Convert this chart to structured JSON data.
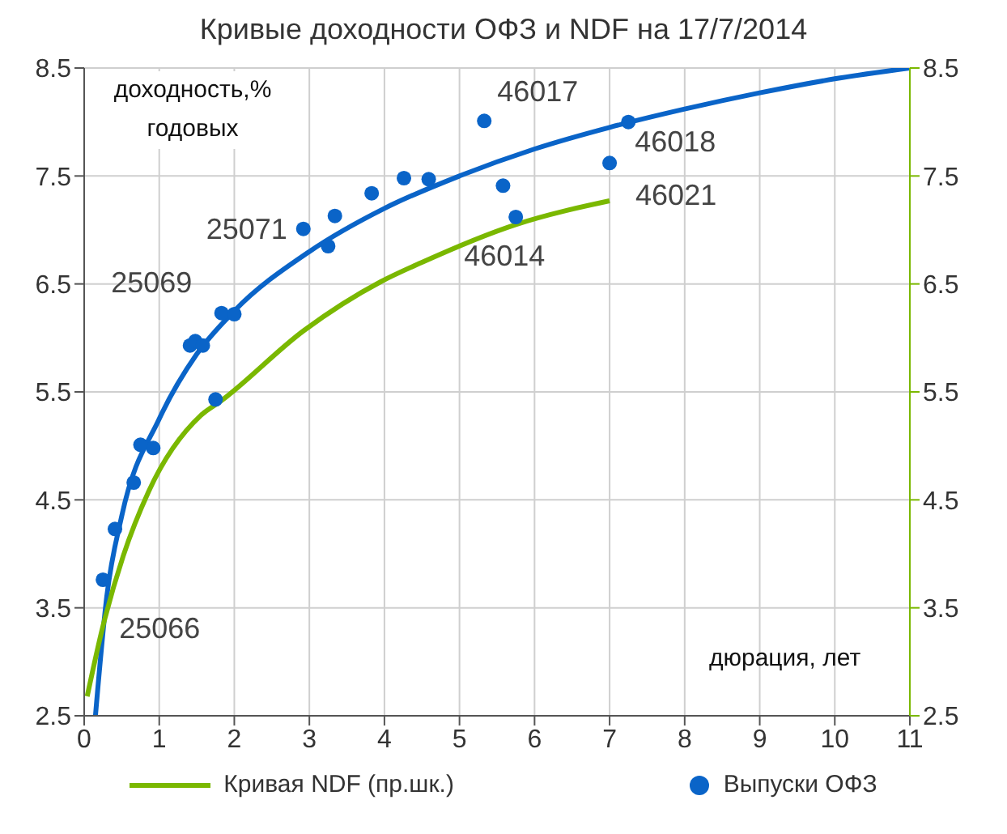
{
  "chart_data": {
    "type": "scatter",
    "title": "Кривые доходности ОФЗ и NDF на 17/7/2014",
    "xlabel": "дюрация, лет",
    "ylabel": "доходность,% годовых",
    "xlim": [
      0,
      11
    ],
    "xticks": [
      0,
      1,
      2,
      3,
      4,
      5,
      6,
      7,
      8,
      9,
      10,
      11
    ],
    "ylim": [
      2.5,
      8.5
    ],
    "yticks": [
      2.5,
      3.5,
      4.5,
      5.5,
      6.5,
      7.5,
      8.5
    ],
    "y2lim": [
      2.5,
      8.5
    ],
    "y2ticks": [
      2.5,
      3.5,
      4.5,
      5.5,
      6.5,
      7.5,
      8.5
    ],
    "grid": true,
    "legend": "bottom",
    "series": [
      {
        "type": "line",
        "color": "#0a64c8",
        "x": [
          0.15,
          0.3,
          0.5,
          1,
          1.5,
          2,
          3,
          4,
          5,
          6,
          7,
          8,
          9,
          10,
          11
        ],
        "values": [
          2.5,
          3.6,
          4.35,
          5.25,
          5.85,
          6.25,
          6.8,
          7.2,
          7.5,
          7.75,
          7.95,
          8.12,
          8.27,
          8.4,
          8.5
        ]
      },
      {
        "name": "Кривая NDF (пр.шк.)",
        "type": "line",
        "axis": "y2",
        "color": "#7ab800",
        "x": [
          0.04,
          0.25,
          0.52,
          0.86,
          1.55,
          1.83,
          2.93,
          3.95,
          4.5,
          5.75,
          7.0
        ],
        "values": [
          2.68,
          3.33,
          3.98,
          4.58,
          5.28,
          5.42,
          6.07,
          6.52,
          6.7,
          7.05,
          7.27
        ]
      },
      {
        "name": "Выпуски ОФЗ",
        "marker": "circle",
        "color": "#0a64c8",
        "x": [
          0.25,
          0.41,
          0.66,
          0.75,
          0.92,
          1.41,
          1.48,
          1.58,
          1.75,
          1.83,
          2.0,
          2.92,
          3.25,
          3.34,
          3.83,
          4.26,
          4.59,
          5.33,
          5.58,
          5.75,
          7.0,
          7.25
        ],
        "values": [
          3.76,
          4.23,
          4.66,
          5.01,
          4.98,
          5.93,
          5.97,
          5.93,
          5.43,
          6.23,
          6.22,
          7.01,
          6.85,
          7.13,
          7.34,
          7.48,
          7.47,
          8.01,
          7.41,
          7.12,
          7.62,
          8.0
        ]
      }
    ],
    "annotations": [
      {
        "text": "25066",
        "x": 0.25,
        "y": 3.76
      },
      {
        "text": "25069",
        "x": 1.48,
        "y": 5.97
      },
      {
        "text": "25071",
        "x": 2.92,
        "y": 7.01
      },
      {
        "text": "46014",
        "x": 5.75,
        "y": 7.12
      },
      {
        "text": "46017",
        "x": 5.33,
        "y": 8.01
      },
      {
        "text": "46018",
        "x": 7.25,
        "y": 8.0
      },
      {
        "text": "46021",
        "x": 7.0,
        "y": 7.62
      }
    ]
  }
}
